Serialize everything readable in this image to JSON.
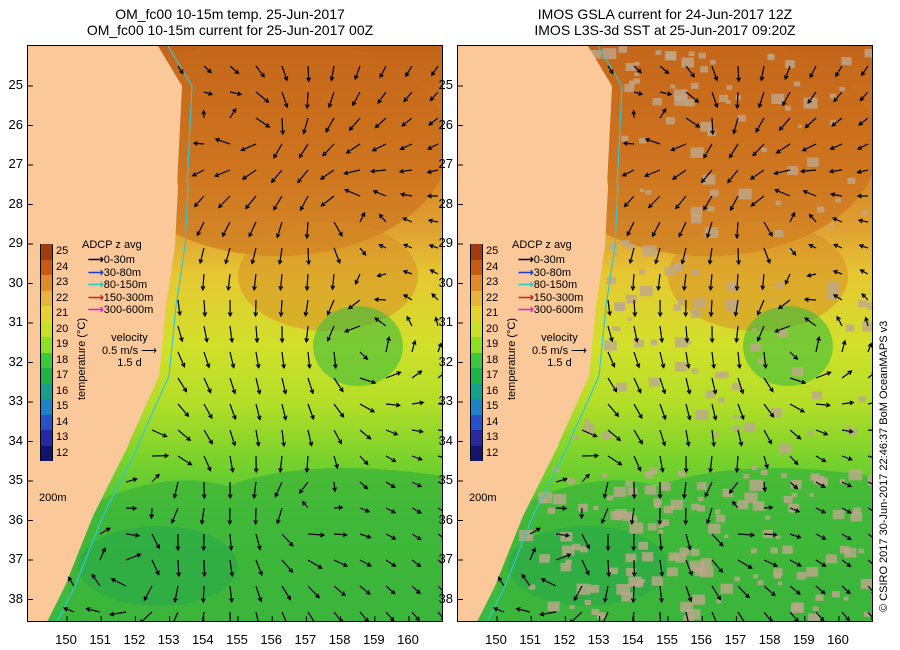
{
  "left_panel": {
    "title_line1": "OM_fc00 10-15m temp. 25-Jun-2017",
    "title_line2": "OM_fc00 10-15m current for 25-Jun-2017 00Z"
  },
  "right_panel": {
    "title_line1": "IMOS GSLA current for 24-Jun-2017 12Z",
    "title_line2": "IMOS L3S-3d SST at 25-Jun-2017 09:20Z"
  },
  "axes": {
    "y_ticks": [
      "25",
      "26",
      "27",
      "28",
      "29",
      "30",
      "31",
      "32",
      "33",
      "34",
      "35",
      "36",
      "37",
      "38"
    ],
    "x_ticks": [
      "150",
      "151",
      "152",
      "153",
      "154",
      "155",
      "156",
      "157",
      "158",
      "159",
      "160"
    ]
  },
  "colorbar": {
    "title": "ADCP z avg",
    "values": [
      "25",
      "24",
      "23",
      "22",
      "21",
      "20",
      "19",
      "18",
      "17",
      "16",
      "15",
      "14",
      "13",
      "12"
    ],
    "axis_label": "temperature (°C)",
    "colors": [
      "#a03c10",
      "#c85a14",
      "#e08a28",
      "#eab23c",
      "#e8d232",
      "#c8e028",
      "#8ede28",
      "#3cc83c",
      "#1eb446",
      "#14a08c",
      "#1e82c8",
      "#2850c8",
      "#2828a0",
      "#14146e"
    ]
  },
  "legend": {
    "items": [
      {
        "label": "0-30m",
        "color": "#000000"
      },
      {
        "label": "30-80m",
        "color": "#1e3cc8"
      },
      {
        "label": "80-150m",
        "color": "#28c8c8"
      },
      {
        "label": "150-300m",
        "color": "#dc1e1e"
      },
      {
        "label": "300-600m",
        "color": "#e01edc"
      }
    ]
  },
  "velocity": {
    "label": "velocity",
    "speed": "0.5 m/s",
    "duration": "1.5 d"
  },
  "depth_label": "200m",
  "credit": "© CSIRO 2017  30-Jun-2017 22:46:37 BoM OceanMAPS v3",
  "colors": {
    "land": "#fac899",
    "coast": "#30c8d8",
    "missing": "#bea88c"
  }
}
